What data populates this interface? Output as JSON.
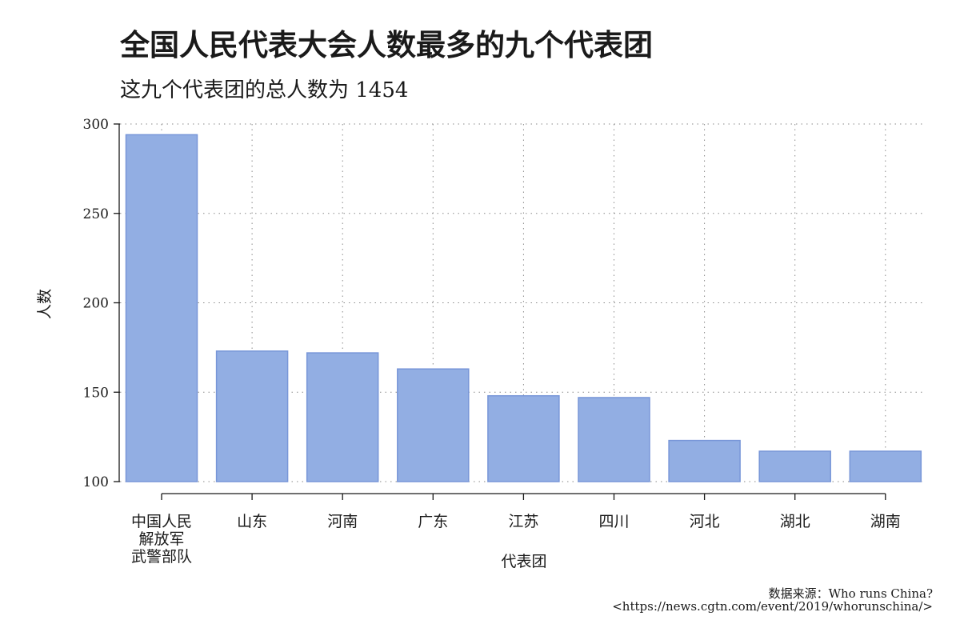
{
  "chart_data": {
    "type": "bar",
    "title": "全国人民代表大会人数最多的九个代表团",
    "subtitle": "这九个代表团的总人数为 1454",
    "xlabel": "代表团",
    "ylabel": "人数",
    "categories": [
      [
        "中国人民",
        "解放军",
        "武警部队"
      ],
      [
        "山东"
      ],
      [
        "河南"
      ],
      [
        "广东"
      ],
      [
        "江苏"
      ],
      [
        "四川"
      ],
      [
        "河北"
      ],
      [
        "湖北"
      ],
      [
        "湖南"
      ]
    ],
    "values": [
      294,
      173,
      172,
      163,
      148,
      147,
      123,
      117,
      117
    ],
    "ylim": [
      100,
      300
    ],
    "yticks": [
      100,
      150,
      200,
      250,
      300
    ],
    "grid": true,
    "bar_color": "#92aee3",
    "bar_edge_color": "#7896d8"
  },
  "source": {
    "line1": "数据来源：Who runs China?",
    "line2": "<https://news.cgtn.com/event/2019/whorunschina/>"
  }
}
